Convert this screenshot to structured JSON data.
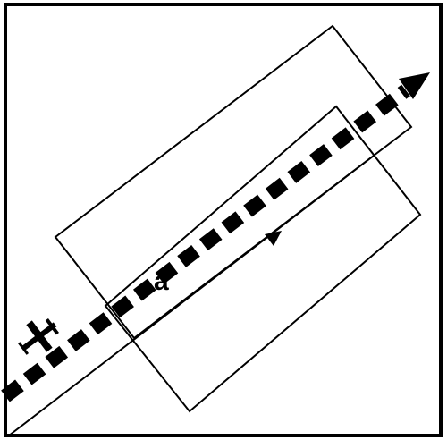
{
  "diagram": {
    "path_label": "a",
    "stroke_color": "#000000",
    "background_color": "#ffffff",
    "icons": [
      "airplane-icon",
      "direction-arrow-icon"
    ]
  }
}
